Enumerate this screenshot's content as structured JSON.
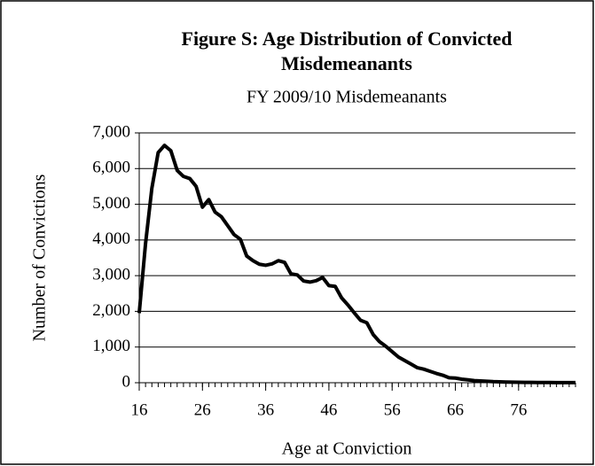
{
  "chart_data": {
    "type": "line",
    "title": "Figure S: Age Distribution of Convicted Misdemeanants",
    "subtitle": "FY 2009/10 Misdemeanants",
    "x_label": "Age at Conviction",
    "y_label": "Number of Convictions",
    "x": [
      16,
      17,
      18,
      19,
      20,
      21,
      22,
      23,
      24,
      25,
      26,
      27,
      28,
      29,
      30,
      31,
      32,
      33,
      34,
      35,
      36,
      37,
      38,
      39,
      40,
      41,
      42,
      43,
      44,
      45,
      46,
      47,
      48,
      49,
      50,
      51,
      52,
      53,
      54,
      55,
      56,
      57,
      58,
      59,
      60,
      61,
      62,
      63,
      64,
      65,
      66,
      67,
      68,
      69,
      70,
      71,
      72,
      73,
      74,
      75,
      76,
      77,
      78,
      79,
      80,
      81,
      82,
      83,
      84,
      85
    ],
    "series": [
      {
        "name": "Convictions",
        "color": "#000000",
        "values": [
          1950,
          3900,
          5450,
          6450,
          6650,
          6500,
          5950,
          5780,
          5720,
          5500,
          4920,
          5130,
          4780,
          4650,
          4400,
          4150,
          4020,
          3550,
          3420,
          3320,
          3290,
          3330,
          3420,
          3370,
          3050,
          3020,
          2850,
          2820,
          2860,
          2950,
          2720,
          2700,
          2380,
          2180,
          1960,
          1750,
          1680,
          1350,
          1150,
          1020,
          870,
          720,
          620,
          520,
          420,
          380,
          320,
          260,
          210,
          140,
          130,
          100,
          80,
          60,
          50,
          40,
          30,
          25,
          20,
          15,
          12,
          10,
          8,
          7,
          6,
          5,
          4,
          3,
          3,
          2
        ]
      }
    ],
    "xlim": [
      16,
      85
    ],
    "xticks": [
      16,
      26,
      36,
      46,
      56,
      66,
      76
    ],
    "ylim": [
      0,
      7000
    ],
    "yticks": [
      0,
      {
        "value": 1000,
        "label": "1,000"
      },
      {
        "value": 2000,
        "label": "2,000"
      },
      {
        "value": 3000,
        "label": "3,000"
      },
      {
        "value": 4000,
        "label": "4,000"
      },
      {
        "value": 5000,
        "label": "5,000"
      },
      {
        "value": 6000,
        "label": "6,000"
      },
      {
        "value": 7000,
        "label": "7,000"
      }
    ],
    "grid": true
  }
}
